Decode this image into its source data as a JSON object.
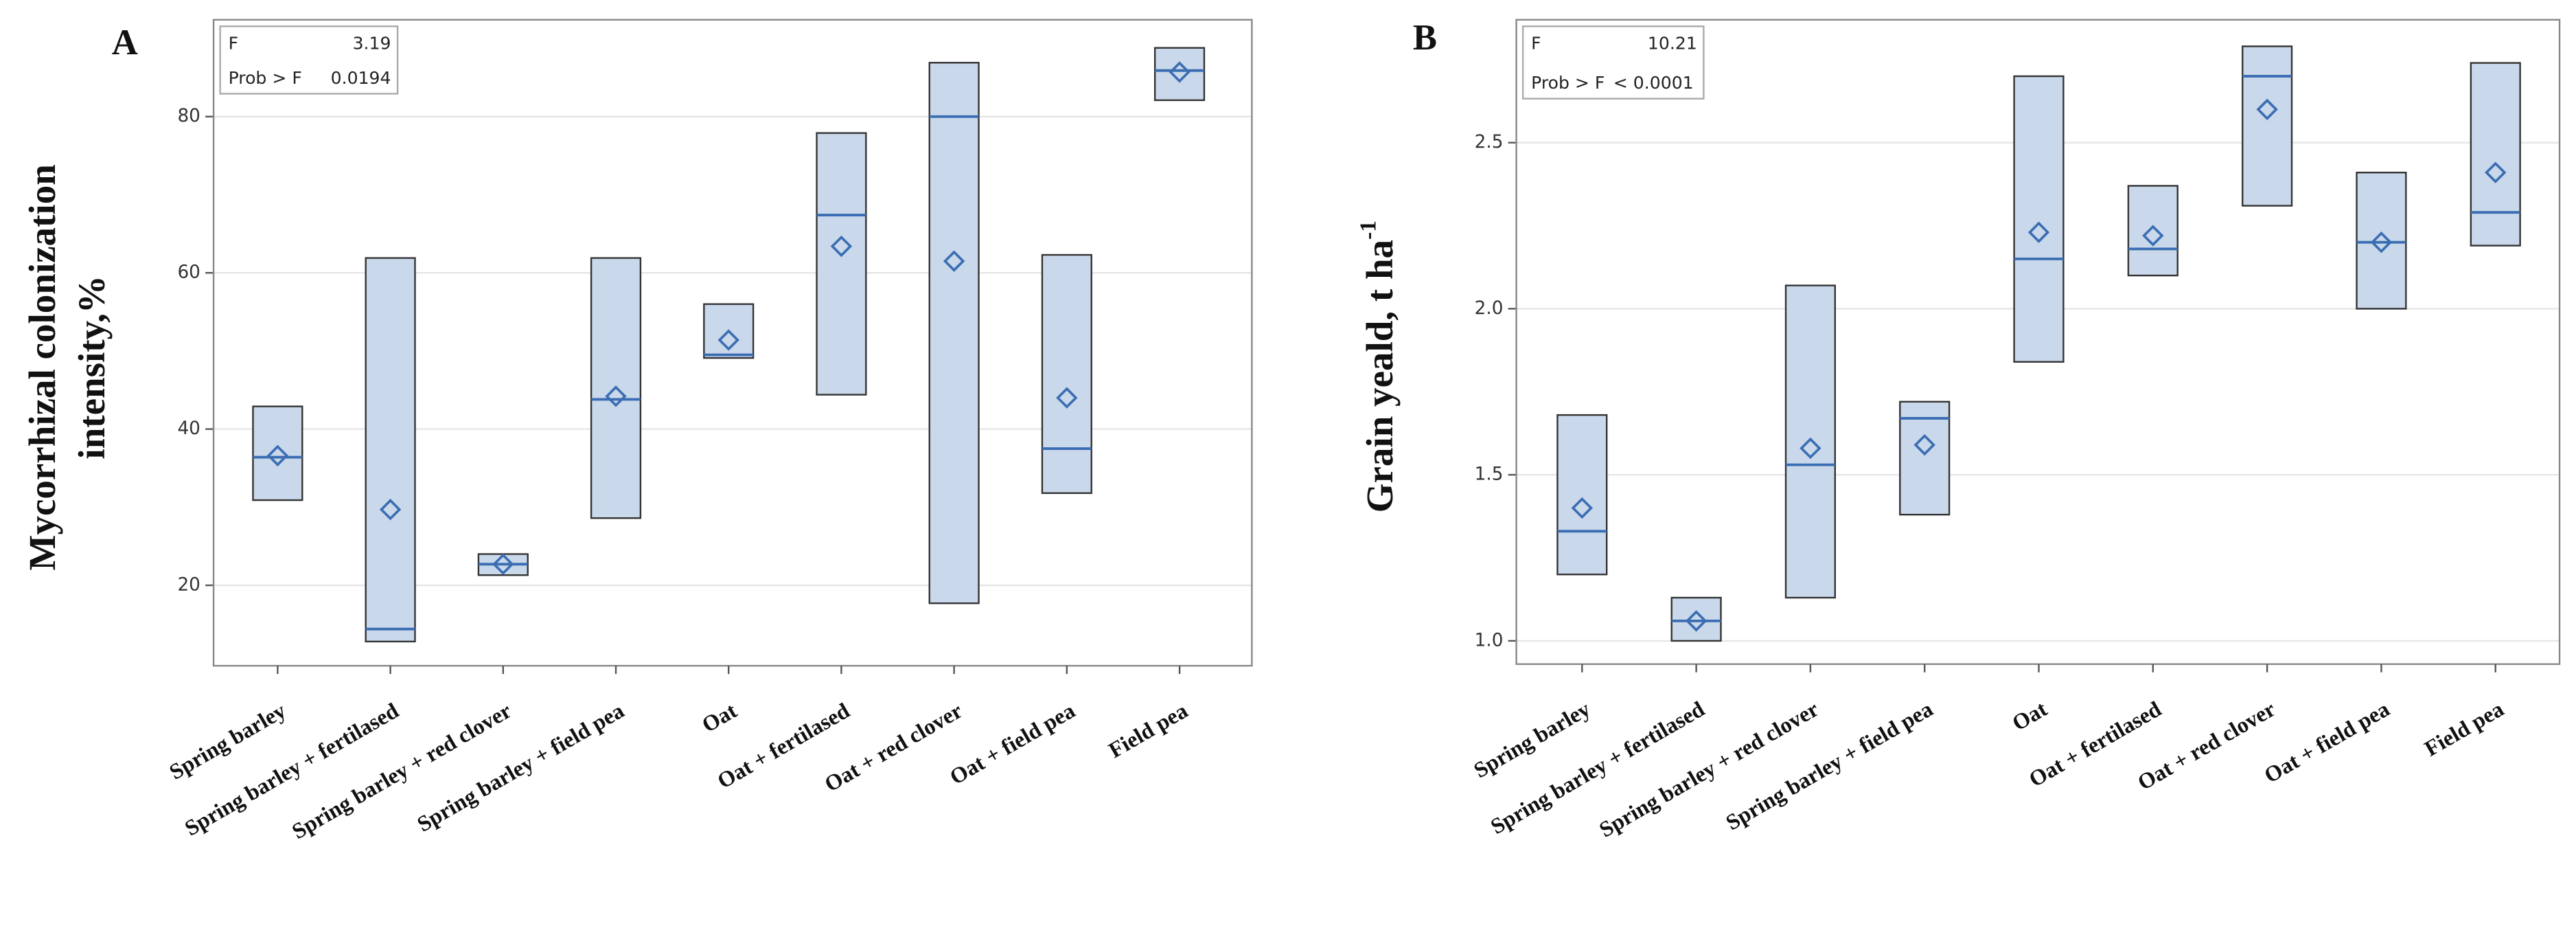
{
  "chart_data": [
    {
      "type": "box",
      "panel": "A",
      "ylabel": [
        "Mycorrhizal colonization",
        "intensity,%"
      ],
      "categories": [
        "Spring barley",
        "Spring barley + fertilased",
        "Spring barley + red clover",
        "Spring barley + field pea",
        "Oat",
        "Oat + fertilased",
        "Oat + red clover",
        "Oat + field pea",
        "Field pea"
      ],
      "min": [
        30.9,
        12.8,
        21.3,
        28.6,
        49.1,
        44.4,
        17.7,
        31.8,
        82.1
      ],
      "max": [
        42.9,
        61.9,
        24,
        61.9,
        56,
        77.9,
        86.9,
        62.3,
        88.8
      ],
      "median": [
        36.4,
        14.4,
        22.7,
        43.8,
        49.5,
        67.4,
        80,
        37.5,
        85.9
      ],
      "mean": [
        36.6,
        29.7,
        22.7,
        44.2,
        51.4,
        63.4,
        61.5,
        44,
        85.7
      ],
      "ylim": [
        9.7,
        92.4
      ],
      "yticks": [
        20,
        40,
        60,
        80
      ],
      "grid": true,
      "color": "#c9d8ea",
      "line_color": "#3b6db3",
      "stats": [
        {
          "name": "F",
          "value": 3.19
        },
        {
          "name": "Prob > F",
          "value": 0.0194
        }
      ]
    },
    {
      "type": "box",
      "panel": "B",
      "ylabel": [
        "Grain yeald, t ha"
      ],
      "ylabel_sup": "-1",
      "categories": [
        "Spring barley",
        "Spring barley + fertilased",
        "Spring barley + red clover",
        "Spring barley + field pea",
        "Oat",
        "Oat + fertilased",
        "Oat + red clover",
        "Oat + field pea",
        "Field pea"
      ],
      "min": [
        1.2,
        1.0,
        1.13,
        1.38,
        1.84,
        2.1,
        2.31,
        2.0,
        2.19
      ],
      "max": [
        1.68,
        1.13,
        2.07,
        1.72,
        2.7,
        2.37,
        2.79,
        2.41,
        2.74
      ],
      "median": [
        1.33,
        1.06,
        1.53,
        1.67,
        2.15,
        2.18,
        2.7,
        2.2,
        2.29
      ],
      "mean": [
        1.4,
        1.06,
        1.58,
        1.59,
        2.23,
        2.22,
        2.6,
        2.2,
        2.41
      ],
      "ylim": [
        0.93,
        2.87
      ],
      "yticks": [
        {
          "value": 1,
          "label": "1.0"
        },
        1.5,
        {
          "value": 2,
          "label": "2.0"
        },
        2.5
      ],
      "grid": true,
      "color": "#c9d8ea",
      "line_color": "#3b6db3",
      "stats": [
        {
          "name": "F",
          "value": 10.21
        },
        {
          "name": "Prob > F",
          "value": "< 0.0001"
        }
      ]
    }
  ]
}
